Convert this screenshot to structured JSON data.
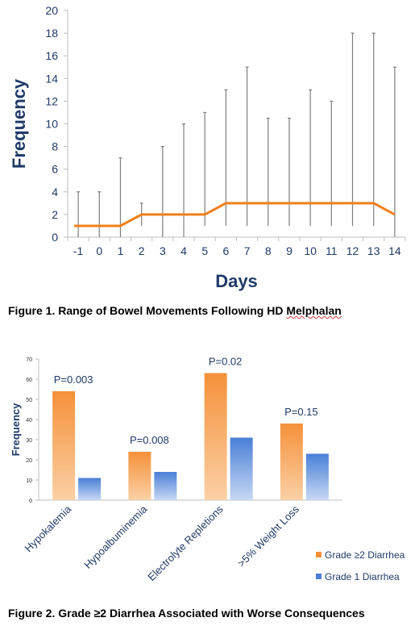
{
  "figure1": {
    "caption_prefix": "Figure 1. Range of Bowel Movements Following HD ",
    "caption_underlined": "Melphalan",
    "chart_data": {
      "type": "line",
      "xlabel": "Days",
      "ylabel": "Frequency",
      "ylim": [
        0,
        20
      ],
      "yticks": [
        0,
        2,
        4,
        6,
        8,
        10,
        12,
        14,
        16,
        18,
        20
      ],
      "x": [
        "-1",
        "0",
        "1",
        "2",
        "3",
        "4",
        "5",
        "6",
        "7",
        "8",
        "9",
        "10",
        "11",
        "12",
        "13",
        "14"
      ],
      "median": [
        1,
        1,
        1,
        2,
        2,
        2,
        2,
        3,
        3,
        3,
        3,
        3,
        3,
        3,
        3,
        2
      ],
      "range_min": [
        0,
        0,
        0,
        1,
        0,
        0,
        1,
        1,
        1,
        1,
        1,
        1,
        1,
        1,
        1,
        0
      ],
      "range_max": [
        4,
        4,
        7,
        3,
        8,
        10,
        11,
        13,
        15,
        10.5,
        10.5,
        13,
        12,
        18,
        18,
        15
      ],
      "line_color": "#f07f19",
      "range_color": "#7f7f7f",
      "axis_color": "#1f3a68"
    }
  },
  "figure2": {
    "caption": "Figure 2. Grade ≥2 Diarrhea Associated with Worse Consequences",
    "chart_data": {
      "type": "bar",
      "ylabel": "Frequency",
      "ylim": [
        0,
        70
      ],
      "yticks": [
        0,
        10,
        20,
        30,
        40,
        50,
        60,
        70
      ],
      "categories": [
        "Hypokalemia",
        "Hypoalbuminemia",
        "Electrolyte Repletions",
        ">5% Weight Loss"
      ],
      "series": [
        {
          "name": "Grade ≥2 Diarrhea",
          "values": [
            54,
            24,
            63,
            38
          ],
          "color": "#f5913a"
        },
        {
          "name": "Grade 1 Diarrhea",
          "values": [
            11,
            14,
            31,
            23
          ],
          "color": "#4a7fd6"
        }
      ],
      "annotations": [
        "P=0.003",
        "P=0.008",
        "P=0.02",
        "P=0.15"
      ],
      "legend_position": "bottom-right"
    }
  }
}
